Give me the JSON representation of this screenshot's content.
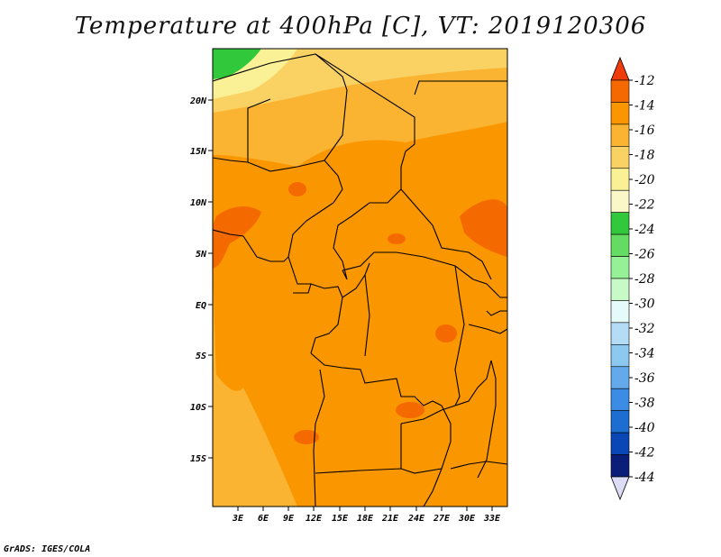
{
  "title": "Temperature at 400hPa [C], VT: 2019120306",
  "credit": "GrADS: IGES/COLA",
  "map": {
    "lat_labels": [
      "20N",
      "15N",
      "10N",
      "5N",
      "EQ",
      "5S",
      "10S",
      "15S"
    ],
    "lon_labels": [
      "3E",
      "6E",
      "9E",
      "12E",
      "15E",
      "18E",
      "21E",
      "24E",
      "27E",
      "30E",
      "33E"
    ],
    "variable": "Temperature",
    "level": "400hPa",
    "units": "C",
    "valid_time": "2019120306"
  },
  "colorbar": {
    "labels": [
      "-12",
      "-14",
      "-16",
      "-18",
      "-20",
      "-22",
      "-24",
      "-26",
      "-28",
      "-30",
      "-32",
      "-34",
      "-36",
      "-38",
      "-40",
      "-42",
      "-44"
    ],
    "colors": [
      "#f03c0a",
      "#f56a00",
      "#fa9600",
      "#fab432",
      "#fad264",
      "#faf096",
      "#faf7c8",
      "#32c83c",
      "#64dc64",
      "#96f096",
      "#c8fac8",
      "#e6fafa",
      "#b4dcf5",
      "#8cc8f0",
      "#64aaeb",
      "#3c8ce6",
      "#1e6ed2",
      "#0a46b4",
      "#0a1e78",
      "#dcdcf5"
    ]
  }
}
